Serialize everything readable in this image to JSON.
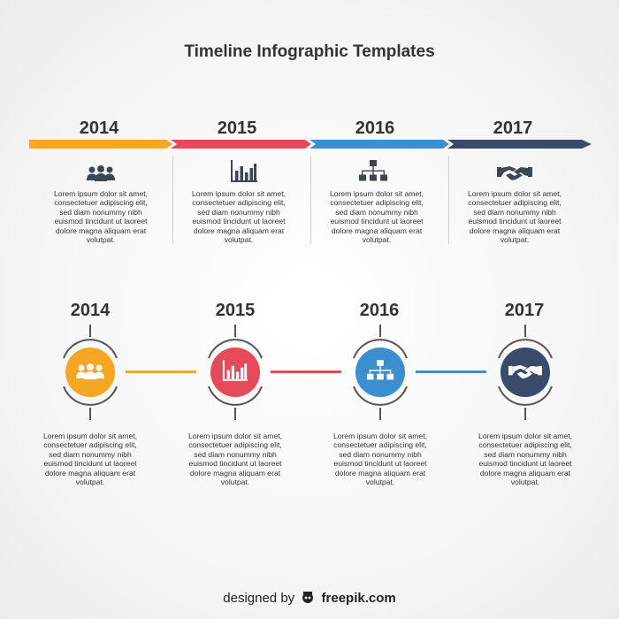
{
  "title": "Timeline Infographic Templates",
  "colors": {
    "orange": "#f5a623",
    "red": "#e54a5b",
    "blue": "#3b8fcf",
    "navy": "#3a4a6b",
    "text": "#333333"
  },
  "timeline1": [
    {
      "year": "2014",
      "icon": "people-icon",
      "text": "Lorem ipsum dolor sit amet, consectetuer adipiscing elit, sed diam nonummy nibh euismod tincidunt ut laoreet dolore magna aliquam erat volutpat."
    },
    {
      "year": "2015",
      "icon": "bar-chart-icon",
      "text": "Lorem ipsum dolor sit amet, consectetuer adipiscing elit, sed diam nonummy nibh euismod tincidunt ut laoreet dolore magna aliquam erat volutpat."
    },
    {
      "year": "2016",
      "icon": "org-chart-icon",
      "text": "Lorem ipsum dolor sit amet, consectetuer adipiscing elit, sed diam nonummy nibh euismod tincidunt ut laoreet dolore magna aliquam erat volutpat."
    },
    {
      "year": "2017",
      "icon": "handshake-icon",
      "text": "Lorem ipsum dolor sit amet, consectetuer adipiscing elit, sed diam nonummy nibh euismod tincidunt ut laoreet dolore magna aliquam erat volutpat."
    }
  ],
  "timeline2": [
    {
      "year": "2014",
      "icon": "people-icon",
      "text": "Lorem ipsum dolor sit amet, consectetuer adipiscing elit, sed diam nonummy nibh euismod tincidunt ut laoreet dolore magna aliquam erat volutpat."
    },
    {
      "year": "2015",
      "icon": "bar-chart-icon",
      "text": "Lorem ipsum dolor sit amet, consectetuer adipiscing elit, sed diam nonummy nibh euismod tincidunt ut laoreet dolore magna aliquam erat volutpat."
    },
    {
      "year": "2016",
      "icon": "org-chart-icon",
      "text": "Lorem ipsum dolor sit amet, consectetuer adipiscing elit, sed diam nonummy nibh euismod tincidunt ut laoreet dolore magna aliquam erat volutpat."
    },
    {
      "year": "2017",
      "icon": "handshake-icon",
      "text": "Lorem ipsum dolor sit amet, consectetuer adipiscing elit, sed diam nonummy nibh euismod tincidunt ut laoreet dolore magna aliquam erat volutpat."
    }
  ],
  "footer": {
    "prefix": "designed by",
    "brand": "freepik.com"
  }
}
